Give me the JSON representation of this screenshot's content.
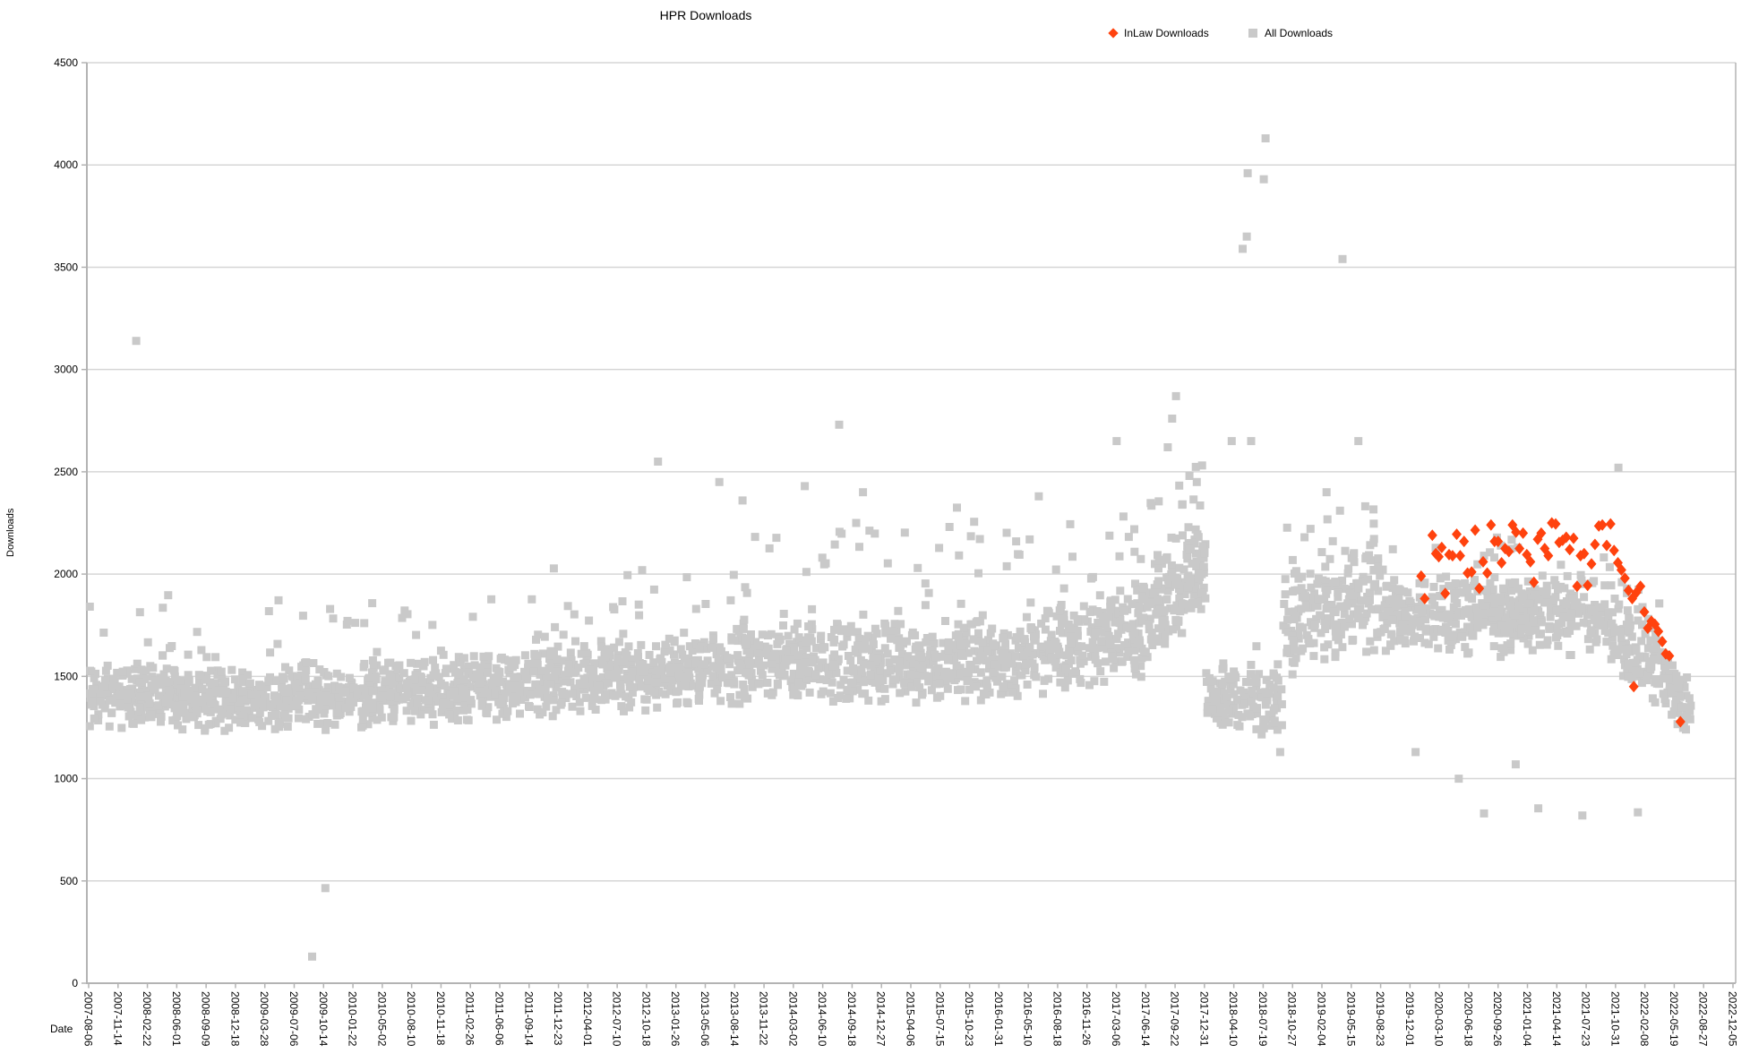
{
  "layout_colors": {
    "background": "#ffffff",
    "grid": "#d6d6d6",
    "axis": "#b3b3b3",
    "text": "#000000"
  },
  "chart_data": {
    "type": "scatter",
    "title": "HPR Downloads",
    "xlabel": "Date",
    "ylabel": "Downloads",
    "ylim": [
      0,
      4500
    ],
    "grid": true,
    "legend_position": "top-right",
    "y_ticks": [
      "0",
      "500",
      "1000",
      "1500",
      "2000",
      "2500",
      "3000",
      "3500",
      "4000",
      "4500"
    ],
    "x_ticks": [
      "2007-08-06",
      "2007-11-14",
      "2008-02-22",
      "2008-06-01",
      "2008-09-09",
      "2008-12-18",
      "2009-03-28",
      "2009-07-06",
      "2009-10-14",
      "2010-01-22",
      "2010-05-02",
      "2010-08-10",
      "2010-11-18",
      "2011-02-26",
      "2011-06-06",
      "2011-09-14",
      "2011-12-23",
      "2012-04-01",
      "2012-07-10",
      "2012-10-18",
      "2013-01-26",
      "2013-05-06",
      "2013-08-14",
      "2013-11-22",
      "2014-03-02",
      "2014-06-10",
      "2014-09-18",
      "2014-12-27",
      "2015-04-06",
      "2015-07-15",
      "2015-10-23",
      "2016-01-31",
      "2016-05-10",
      "2016-08-18",
      "2016-11-26",
      "2017-03-06",
      "2017-06-14",
      "2017-09-22",
      "2017-12-31",
      "2018-04-10",
      "2018-07-19",
      "2018-10-27",
      "2019-02-04",
      "2019-05-15",
      "2019-08-23",
      "2019-12-01",
      "2020-03-10",
      "2020-06-18",
      "2020-09-26",
      "2021-01-04",
      "2021-04-14",
      "2021-07-23",
      "2021-10-31",
      "2022-02-08",
      "2022-05-19",
      "2022-08-27",
      "2022-12-05"
    ],
    "series": [
      {
        "name": "InLaw Downloads",
        "marker": "diamond",
        "color": "#ff420e",
        "points": [
          [
            "2020-01-08",
            1990
          ],
          [
            "2020-01-20",
            1880
          ],
          [
            "2020-02-15",
            2190
          ],
          [
            "2020-02-27",
            2100
          ],
          [
            "2020-03-08",
            2085
          ],
          [
            "2020-03-18",
            2130
          ],
          [
            "2020-03-30",
            1905
          ],
          [
            "2020-04-12",
            2095
          ],
          [
            "2020-04-24",
            2090
          ],
          [
            "2020-05-08",
            2195
          ],
          [
            "2020-05-20",
            2090
          ],
          [
            "2020-06-02",
            2160
          ],
          [
            "2020-06-14",
            2005
          ],
          [
            "2020-06-28",
            2010
          ],
          [
            "2020-07-10",
            2215
          ],
          [
            "2020-07-24",
            1930
          ],
          [
            "2020-08-06",
            2060
          ],
          [
            "2020-08-20",
            2005
          ],
          [
            "2020-09-02",
            2240
          ],
          [
            "2020-09-14",
            2160
          ],
          [
            "2020-09-26",
            2160
          ],
          [
            "2020-10-08",
            2055
          ],
          [
            "2020-10-20",
            2125
          ],
          [
            "2020-11-02",
            2110
          ],
          [
            "2020-11-14",
            2240
          ],
          [
            "2020-11-26",
            2205
          ],
          [
            "2020-12-08",
            2125
          ],
          [
            "2020-12-20",
            2200
          ],
          [
            "2021-01-02",
            2095
          ],
          [
            "2021-01-14",
            2060
          ],
          [
            "2021-01-26",
            1960
          ],
          [
            "2021-02-08",
            2170
          ],
          [
            "2021-02-20",
            2200
          ],
          [
            "2021-03-04",
            2125
          ],
          [
            "2021-03-16",
            2090
          ],
          [
            "2021-03-28",
            2250
          ],
          [
            "2021-04-10",
            2245
          ],
          [
            "2021-04-22",
            2155
          ],
          [
            "2021-05-04",
            2165
          ],
          [
            "2021-05-16",
            2180
          ],
          [
            "2021-05-28",
            2120
          ],
          [
            "2021-06-10",
            2175
          ],
          [
            "2021-06-22",
            1940
          ],
          [
            "2021-07-04",
            2090
          ],
          [
            "2021-07-16",
            2100
          ],
          [
            "2021-07-28",
            1945
          ],
          [
            "2021-08-10",
            2050
          ],
          [
            "2021-08-22",
            2145
          ],
          [
            "2021-09-04",
            2235
          ],
          [
            "2021-09-16",
            2240
          ],
          [
            "2021-10-01",
            2140
          ],
          [
            "2021-10-14",
            2245
          ],
          [
            "2021-10-26",
            2115
          ],
          [
            "2021-11-08",
            2055
          ],
          [
            "2021-11-20",
            2020
          ],
          [
            "2021-12-02",
            1980
          ],
          [
            "2021-12-14",
            1920
          ],
          [
            "2021-12-27",
            1880
          ],
          [
            "2022-01-01",
            1450
          ],
          [
            "2022-01-10",
            1910
          ],
          [
            "2022-01-24",
            1940
          ],
          [
            "2022-02-06",
            1815
          ],
          [
            "2022-02-18",
            1735
          ],
          [
            "2022-03-02",
            1770
          ],
          [
            "2022-03-14",
            1755
          ],
          [
            "2022-03-26",
            1720
          ],
          [
            "2022-04-08",
            1670
          ],
          [
            "2022-04-20",
            1610
          ],
          [
            "2022-05-02",
            1600
          ],
          [
            "2022-06-09",
            1278
          ]
        ]
      },
      {
        "name": "All Downloads",
        "marker": "square",
        "color": "#c9c9c9",
        "cloud_seed": 42,
        "outlier_points": [
          [
            "2008-01-15",
            3140
          ],
          [
            "2009-09-05",
            130
          ],
          [
            "2009-10-20",
            465
          ],
          [
            "2012-11-26",
            2550
          ],
          [
            "2013-06-23",
            2450
          ],
          [
            "2013-09-10",
            2360
          ],
          [
            "2014-04-10",
            2430
          ],
          [
            "2014-08-05",
            2730
          ],
          [
            "2014-10-02",
            2250
          ],
          [
            "2014-10-25",
            2400
          ],
          [
            "2015-09-10",
            2325
          ],
          [
            "2016-06-15",
            2380
          ],
          [
            "2017-03-07",
            2650
          ],
          [
            "2017-08-28",
            2620
          ],
          [
            "2017-09-12",
            2760
          ],
          [
            "2017-09-25",
            2870
          ],
          [
            "2017-11-10",
            2480
          ],
          [
            "2017-12-05",
            2450
          ],
          [
            "2018-04-03",
            2650
          ],
          [
            "2018-05-10",
            3590
          ],
          [
            "2018-05-24",
            3650
          ],
          [
            "2018-05-27",
            3960
          ],
          [
            "2018-06-08",
            2650
          ],
          [
            "2018-07-21",
            3930
          ],
          [
            "2018-07-27",
            4130
          ],
          [
            "2018-09-15",
            1130
          ],
          [
            "2019-02-20",
            2400
          ],
          [
            "2019-04-15",
            3540
          ],
          [
            "2019-06-08",
            2650
          ],
          [
            "2019-12-20",
            1130
          ],
          [
            "2020-05-15",
            1000
          ],
          [
            "2020-08-09",
            830
          ],
          [
            "2020-11-25",
            1070
          ],
          [
            "2021-02-10",
            855
          ],
          [
            "2021-07-10",
            820
          ],
          [
            "2021-11-10",
            2520
          ],
          [
            "2022-01-15",
            835
          ],
          [
            "2022-06-15",
            1350
          ],
          [
            "2022-06-28",
            1240
          ]
        ],
        "cloud_segments": [
          {
            "from": "2007-08-10",
            "to": "2008-06-01",
            "count": 200,
            "center_start": 1400,
            "center_end": 1400,
            "spread": 170,
            "upper_tail_frac": 0.06,
            "upper_tail_max": 500
          },
          {
            "from": "2008-06-01",
            "to": "2009-07-01",
            "count": 260,
            "center_start": 1390,
            "center_end": 1390,
            "spread": 170,
            "upper_tail_frac": 0.05,
            "upper_tail_max": 430
          },
          {
            "from": "2009-07-01",
            "to": "2010-07-01",
            "count": 230,
            "center_start": 1400,
            "center_end": 1420,
            "spread": 180,
            "upper_tail_frac": 0.05,
            "upper_tail_max": 380
          },
          {
            "from": "2010-07-01",
            "to": "2011-07-01",
            "count": 230,
            "center_start": 1420,
            "center_end": 1450,
            "spread": 180,
            "upper_tail_frac": 0.06,
            "upper_tail_max": 420
          },
          {
            "from": "2011-07-01",
            "to": "2012-07-01",
            "count": 230,
            "center_start": 1450,
            "center_end": 1500,
            "spread": 190,
            "upper_tail_frac": 0.07,
            "upper_tail_max": 480
          },
          {
            "from": "2012-07-01",
            "to": "2013-07-01",
            "count": 230,
            "center_start": 1500,
            "center_end": 1550,
            "spread": 200,
            "upper_tail_frac": 0.08,
            "upper_tail_max": 520
          },
          {
            "from": "2013-07-01",
            "to": "2014-07-01",
            "count": 230,
            "center_start": 1550,
            "center_end": 1570,
            "spread": 215,
            "upper_tail_frac": 0.08,
            "upper_tail_max": 560
          },
          {
            "from": "2014-07-01",
            "to": "2015-07-01",
            "count": 230,
            "center_start": 1570,
            "center_end": 1570,
            "spread": 215,
            "upper_tail_frac": 0.08,
            "upper_tail_max": 580
          },
          {
            "from": "2015-07-01",
            "to": "2016-07-01",
            "count": 230,
            "center_start": 1560,
            "center_end": 1600,
            "spread": 225,
            "upper_tail_frac": 0.09,
            "upper_tail_max": 620
          },
          {
            "from": "2016-07-01",
            "to": "2017-06-01",
            "count": 220,
            "center_start": 1620,
            "center_end": 1720,
            "spread": 255,
            "upper_tail_frac": 0.1,
            "upper_tail_max": 500
          },
          {
            "from": "2017-06-01",
            "to": "2018-01-05",
            "count": 170,
            "center_start": 1800,
            "center_end": 2050,
            "spread": 300,
            "upper_tail_frac": 0.08,
            "upper_tail_max": 400
          },
          {
            "from": "2018-01-05",
            "to": "2018-09-25",
            "count": 140,
            "center_start": 1400,
            "center_end": 1380,
            "spread": 190,
            "upper_tail_frac": 0.04,
            "upper_tail_max": 280
          },
          {
            "from": "2018-09-25",
            "to": "2019-09-01",
            "count": 210,
            "center_start": 1750,
            "center_end": 1900,
            "spread": 300,
            "upper_tail_frac": 0.07,
            "upper_tail_max": 380
          },
          {
            "from": "2019-09-01",
            "to": "2020-01-10",
            "count": 85,
            "center_start": 1800,
            "center_end": 1780,
            "spread": 230,
            "upper_tail_frac": 0.05,
            "upper_tail_max": 250
          },
          {
            "from": "2020-01-10",
            "to": "2021-10-01",
            "count": 380,
            "center_start": 1800,
            "center_end": 1800,
            "spread": 210,
            "upper_tail_frac": 0.04,
            "upper_tail_max": 300
          },
          {
            "from": "2021-10-01",
            "to": "2022-04-01",
            "count": 115,
            "center_start": 1720,
            "center_end": 1550,
            "spread": 230,
            "upper_tail_frac": 0.03,
            "upper_tail_max": 250
          },
          {
            "from": "2022-04-01",
            "to": "2022-07-15",
            "count": 60,
            "center_start": 1520,
            "center_end": 1330,
            "spread": 170,
            "upper_tail_frac": 0.02,
            "upper_tail_max": 200
          }
        ]
      }
    ]
  }
}
